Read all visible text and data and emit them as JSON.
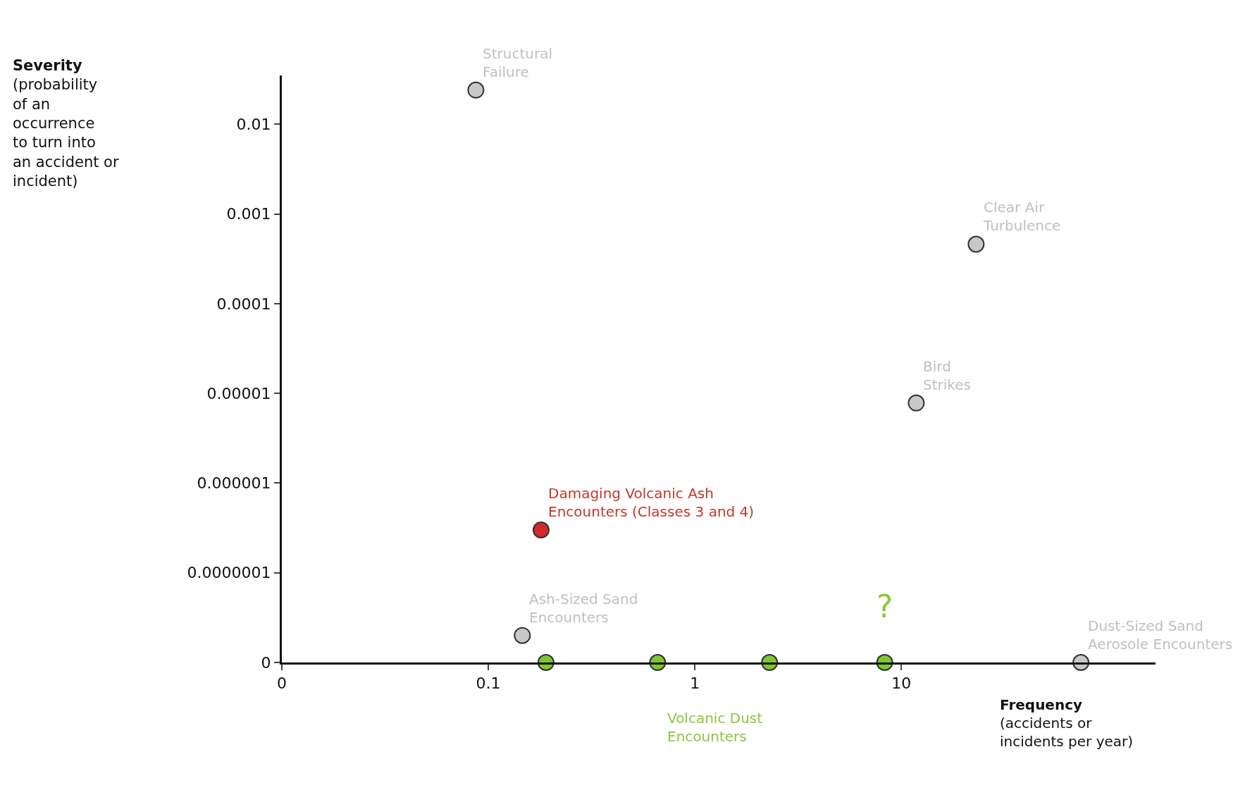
{
  "chart_data": {
    "type": "scatter",
    "xlabel": "Frequency\n(accidents or\nincidents per year)",
    "log": "xy",
    "legend": false,
    "marker": "circle",
    "xlim": [
      0.01,
      170
    ],
    "ylim": [
      1e-08,
      0.035
    ],
    "xticks": [
      {
        "value": 0.01,
        "label": "0"
      },
      0.1,
      1,
      10
    ],
    "yticks": [
      {
        "value": 1e-08,
        "label": "0"
      },
      {
        "value": 1e-07,
        "label": "0.0000001"
      },
      {
        "value": 1e-06,
        "label": "0.000001"
      },
      {
        "value": 1e-05,
        "label": "0.00001"
      },
      0.0001,
      0.001,
      0.01
    ],
    "series": [
      {
        "name": "Structural\nFailure",
        "color": "#c8c8c8",
        "x": [
          0.087
        ],
        "values": [
          0.024
        ]
      },
      {
        "name": "Clear Air\nTurbulence",
        "color": "#c8c8c8",
        "x": [
          23
        ],
        "values": [
          0.00046
        ]
      },
      {
        "name": "Bird\nStrikes",
        "color": "#c8c8c8",
        "x": [
          11.8
        ],
        "values": [
          7.8e-06
        ]
      },
      {
        "name": "Damaging Volcanic Ash\nEncounters (Classes 3 and 4)",
        "color": "#d42a2a",
        "x": [
          0.18
        ],
        "values": [
          3e-07
        ]
      },
      {
        "name": "Ash-Sized Sand\nEncounters",
        "color": "#c8c8c8",
        "x": [
          0.146
        ],
        "values": [
          2e-08
        ]
      },
      {
        "name": "Dust-Sized Sand\nAerosole Encounters",
        "color": "#c8c8c8",
        "x": [
          74
        ],
        "values": [
          1e-08
        ]
      },
      {
        "name": "Volcanic Dust\nEncounters",
        "color": "#7dc832",
        "x": [
          0.19,
          0.66,
          2.3,
          8.3
        ],
        "values": [
          1e-08,
          1e-08,
          1e-08,
          1e-08
        ]
      }
    ],
    "annotations": [
      "?",
      "Severity\n(probability\nof an\noccurrence\nto turn into\nan accident or\nincident)"
    ]
  }
}
